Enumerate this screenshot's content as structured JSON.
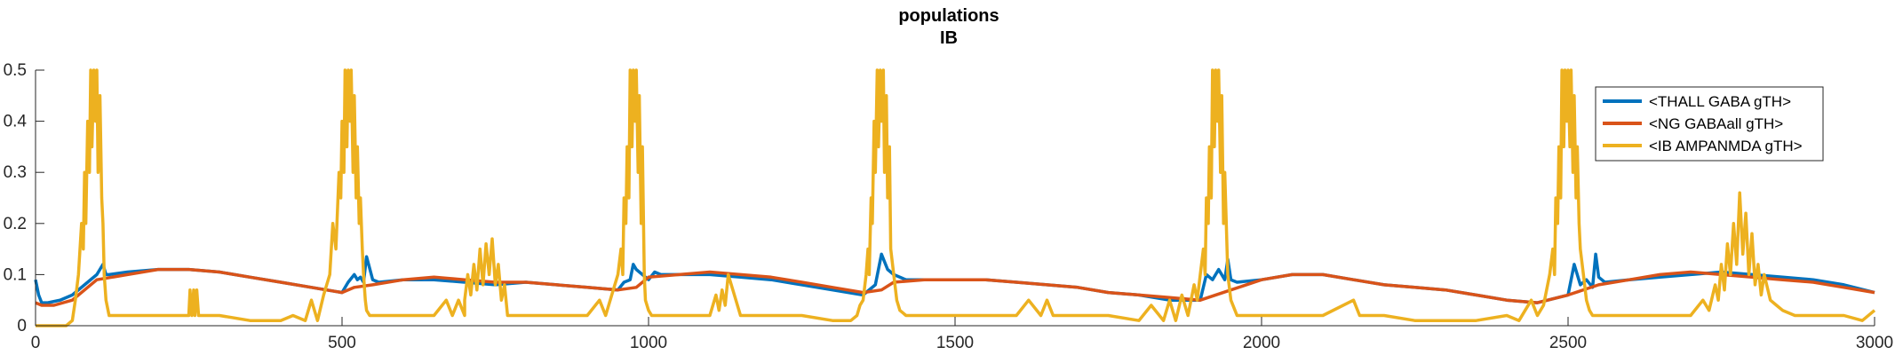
{
  "chart_data": {
    "type": "line",
    "title": "populations",
    "subtitle": "IB",
    "xlabel": "",
    "ylabel": "",
    "xlim": [
      0,
      3000
    ],
    "ylim": [
      0,
      0.5
    ],
    "xticks": [
      0,
      500,
      1000,
      1500,
      2000,
      2500,
      3000
    ],
    "yticks": [
      0,
      0.1,
      0.2,
      0.3,
      0.4,
      0.5
    ],
    "xtick_labels": [
      "0",
      "500",
      "1000",
      "1500",
      "2000",
      "2500",
      "3000"
    ],
    "ytick_labels": [
      "0",
      "0.1",
      "0.2",
      "0.3",
      "0.4",
      "0.5"
    ],
    "grid": false,
    "legend_position": "top-right",
    "series": [
      {
        "name": "<THALL GABA gTH>",
        "color": "#0072BD",
        "x": [
          0,
          5,
          10,
          20,
          40,
          60,
          80,
          100,
          110,
          115,
          120,
          150,
          200,
          250,
          300,
          350,
          400,
          450,
          500,
          510,
          520,
          525,
          530,
          535,
          540,
          550,
          560,
          600,
          650,
          700,
          750,
          800,
          850,
          900,
          950,
          960,
          970,
          975,
          980,
          990,
          1000,
          1010,
          1020,
          1030,
          1040,
          1100,
          1150,
          1200,
          1250,
          1300,
          1350,
          1370,
          1380,
          1390,
          1400,
          1420,
          1440,
          1500,
          1550,
          1600,
          1650,
          1700,
          1750,
          1800,
          1850,
          1900,
          1910,
          1920,
          1930,
          1940,
          1945,
          1950,
          1960,
          2000,
          2050,
          2100,
          2150,
          2200,
          2250,
          2300,
          2350,
          2400,
          2450,
          2500,
          2510,
          2520,
          2530,
          2540,
          2545,
          2550,
          2560,
          2600,
          2650,
          2700,
          2750,
          2800,
          2850,
          2900,
          2950,
          3000
        ],
        "y": [
          0.09,
          0.06,
          0.045,
          0.045,
          0.05,
          0.06,
          0.08,
          0.1,
          0.12,
          0.1,
          0.1,
          0.105,
          0.11,
          0.11,
          0.105,
          0.095,
          0.085,
          0.075,
          0.065,
          0.085,
          0.1,
          0.09,
          0.095,
          0.085,
          0.135,
          0.09,
          0.085,
          0.09,
          0.09,
          0.085,
          0.08,
          0.085,
          0.08,
          0.075,
          0.07,
          0.085,
          0.09,
          0.12,
          0.11,
          0.1,
          0.09,
          0.105,
          0.1,
          0.1,
          0.1,
          0.1,
          0.095,
          0.09,
          0.08,
          0.07,
          0.06,
          0.08,
          0.14,
          0.11,
          0.1,
          0.09,
          0.09,
          0.09,
          0.09,
          0.085,
          0.08,
          0.075,
          0.065,
          0.06,
          0.05,
          0.05,
          0.1,
          0.09,
          0.11,
          0.09,
          0.13,
          0.09,
          0.085,
          0.09,
          0.1,
          0.1,
          0.09,
          0.08,
          0.075,
          0.07,
          0.06,
          0.05,
          0.045,
          0.06,
          0.12,
          0.08,
          0.09,
          0.075,
          0.14,
          0.095,
          0.085,
          0.09,
          0.095,
          0.1,
          0.105,
          0.1,
          0.095,
          0.09,
          0.08,
          0.065
        ]
      },
      {
        "name": "<NG GABAall gTH>",
        "color": "#D95319",
        "x": [
          0,
          10,
          30,
          60,
          100,
          150,
          200,
          250,
          300,
          350,
          400,
          450,
          500,
          520,
          550,
          600,
          650,
          700,
          750,
          800,
          850,
          900,
          950,
          980,
          1000,
          1050,
          1100,
          1150,
          1200,
          1250,
          1300,
          1350,
          1380,
          1400,
          1450,
          1500,
          1550,
          1600,
          1650,
          1700,
          1750,
          1800,
          1850,
          1900,
          1950,
          2000,
          2050,
          2100,
          2150,
          2200,
          2250,
          2300,
          2350,
          2400,
          2450,
          2500,
          2550,
          2600,
          2650,
          2700,
          2750,
          2800,
          2850,
          2900,
          2950,
          3000
        ],
        "y": [
          0.045,
          0.04,
          0.04,
          0.05,
          0.09,
          0.1,
          0.11,
          0.11,
          0.105,
          0.095,
          0.085,
          0.075,
          0.065,
          0.075,
          0.08,
          0.09,
          0.095,
          0.09,
          0.085,
          0.085,
          0.08,
          0.075,
          0.07,
          0.075,
          0.095,
          0.1,
          0.105,
          0.1,
          0.095,
          0.085,
          0.075,
          0.065,
          0.07,
          0.085,
          0.09,
          0.09,
          0.09,
          0.085,
          0.08,
          0.075,
          0.065,
          0.06,
          0.055,
          0.05,
          0.07,
          0.09,
          0.1,
          0.1,
          0.09,
          0.08,
          0.075,
          0.07,
          0.06,
          0.05,
          0.045,
          0.06,
          0.08,
          0.09,
          0.1,
          0.105,
          0.1,
          0.095,
          0.09,
          0.085,
          0.075,
          0.065
        ]
      },
      {
        "name": "<IB AMPANMDA gTH>",
        "color": "#EDB120",
        "x": [
          0,
          10,
          50,
          60,
          65,
          70,
          75,
          78,
          80,
          82,
          85,
          88,
          90,
          92,
          95,
          98,
          100,
          102,
          105,
          108,
          110,
          112,
          115,
          120,
          125,
          130,
          150,
          200,
          250,
          252,
          255,
          258,
          260,
          263,
          266,
          270,
          300,
          350,
          400,
          420,
          440,
          450,
          460,
          470,
          480,
          485,
          490,
          495,
          498,
          500,
          503,
          505,
          508,
          510,
          513,
          515,
          518,
          520,
          523,
          525,
          528,
          530,
          533,
          535,
          538,
          540,
          545,
          550,
          555,
          560,
          570,
          600,
          650,
          670,
          680,
          690,
          700,
          700,
          705,
          710,
          715,
          720,
          725,
          730,
          735,
          740,
          745,
          750,
          755,
          760,
          765,
          770,
          780,
          800,
          850,
          900,
          920,
          930,
          940,
          950,
          955,
          958,
          960,
          963,
          965,
          968,
          970,
          973,
          975,
          978,
          980,
          983,
          985,
          988,
          990,
          993,
          995,
          1000,
          1005,
          1010,
          1020,
          1050,
          1100,
          1110,
          1115,
          1120,
          1125,
          1130,
          1140,
          1150,
          1200,
          1250,
          1300,
          1330,
          1340,
          1345,
          1350,
          1355,
          1358,
          1360,
          1363,
          1365,
          1368,
          1370,
          1373,
          1375,
          1378,
          1380,
          1383,
          1385,
          1388,
          1390,
          1393,
          1395,
          1400,
          1405,
          1410,
          1420,
          1450,
          1500,
          1550,
          1600,
          1620,
          1640,
          1650,
          1660,
          1680,
          1700,
          1750,
          1800,
          1820,
          1840,
          1850,
          1860,
          1870,
          1880,
          1890,
          1895,
          1900,
          1905,
          1908,
          1910,
          1913,
          1915,
          1918,
          1920,
          1923,
          1925,
          1928,
          1930,
          1933,
          1935,
          1938,
          1940,
          1945,
          1950,
          1960,
          1980,
          2000,
          2050,
          2100,
          2150,
          2160,
          2170,
          2200,
          2250,
          2300,
          2350,
          2400,
          2420,
          2440,
          2450,
          2460,
          2470,
          2475,
          2478,
          2480,
          2483,
          2485,
          2488,
          2490,
          2493,
          2495,
          2498,
          2500,
          2503,
          2505,
          2508,
          2510,
          2513,
          2515,
          2518,
          2520,
          2525,
          2530,
          2535,
          2540,
          2550,
          2600,
          2650,
          2700,
          2720,
          2730,
          2740,
          2745,
          2750,
          2755,
          2760,
          2765,
          2770,
          2775,
          2780,
          2785,
          2790,
          2795,
          2800,
          2805,
          2810,
          2815,
          2820,
          2830,
          2840,
          2850,
          2870,
          2900,
          2950,
          2980,
          3000
        ],
        "y": [
          0.0,
          0.0,
          0.0,
          0.01,
          0.05,
          0.1,
          0.2,
          0.15,
          0.3,
          0.2,
          0.4,
          0.3,
          0.5,
          0.35,
          0.5,
          0.4,
          0.5,
          0.3,
          0.45,
          0.25,
          0.2,
          0.1,
          0.05,
          0.02,
          0.02,
          0.02,
          0.02,
          0.02,
          0.02,
          0.07,
          0.02,
          0.07,
          0.02,
          0.07,
          0.02,
          0.02,
          0.02,
          0.01,
          0.01,
          0.02,
          0.01,
          0.05,
          0.01,
          0.06,
          0.1,
          0.2,
          0.15,
          0.3,
          0.25,
          0.4,
          0.3,
          0.5,
          0.35,
          0.5,
          0.4,
          0.5,
          0.3,
          0.45,
          0.25,
          0.35,
          0.2,
          0.25,
          0.15,
          0.1,
          0.05,
          0.03,
          0.02,
          0.02,
          0.02,
          0.02,
          0.02,
          0.02,
          0.02,
          0.05,
          0.02,
          0.05,
          0.02,
          0.05,
          0.1,
          0.06,
          0.12,
          0.07,
          0.15,
          0.08,
          0.16,
          0.1,
          0.17,
          0.08,
          0.12,
          0.05,
          0.08,
          0.02,
          0.02,
          0.02,
          0.02,
          0.02,
          0.05,
          0.02,
          0.06,
          0.1,
          0.15,
          0.1,
          0.25,
          0.2,
          0.35,
          0.25,
          0.5,
          0.35,
          0.5,
          0.4,
          0.5,
          0.3,
          0.45,
          0.2,
          0.35,
          0.1,
          0.05,
          0.03,
          0.02,
          0.02,
          0.02,
          0.02,
          0.02,
          0.06,
          0.03,
          0.07,
          0.04,
          0.1,
          0.06,
          0.02,
          0.02,
          0.02,
          0.01,
          0.01,
          0.02,
          0.04,
          0.05,
          0.1,
          0.15,
          0.1,
          0.25,
          0.2,
          0.4,
          0.3,
          0.5,
          0.35,
          0.5,
          0.4,
          0.5,
          0.3,
          0.45,
          0.25,
          0.35,
          0.15,
          0.1,
          0.05,
          0.03,
          0.02,
          0.02,
          0.02,
          0.02,
          0.02,
          0.05,
          0.02,
          0.05,
          0.02,
          0.02,
          0.02,
          0.02,
          0.01,
          0.04,
          0.01,
          0.05,
          0.01,
          0.06,
          0.02,
          0.08,
          0.05,
          0.1,
          0.15,
          0.1,
          0.25,
          0.2,
          0.35,
          0.25,
          0.5,
          0.35,
          0.5,
          0.4,
          0.5,
          0.3,
          0.45,
          0.2,
          0.3,
          0.1,
          0.05,
          0.02,
          0.02,
          0.02,
          0.02,
          0.02,
          0.05,
          0.02,
          0.02,
          0.02,
          0.01,
          0.01,
          0.01,
          0.02,
          0.01,
          0.05,
          0.02,
          0.04,
          0.1,
          0.15,
          0.1,
          0.25,
          0.2,
          0.35,
          0.25,
          0.5,
          0.35,
          0.5,
          0.4,
          0.5,
          0.35,
          0.5,
          0.3,
          0.45,
          0.25,
          0.35,
          0.2,
          0.15,
          0.1,
          0.05,
          0.03,
          0.02,
          0.02,
          0.02,
          0.02,
          0.02,
          0.05,
          0.03,
          0.08,
          0.05,
          0.12,
          0.07,
          0.16,
          0.1,
          0.2,
          0.12,
          0.26,
          0.14,
          0.22,
          0.1,
          0.18,
          0.08,
          0.12,
          0.06,
          0.1,
          0.05,
          0.04,
          0.03,
          0.02,
          0.02,
          0.02,
          0.01,
          0.03
        ]
      }
    ]
  }
}
